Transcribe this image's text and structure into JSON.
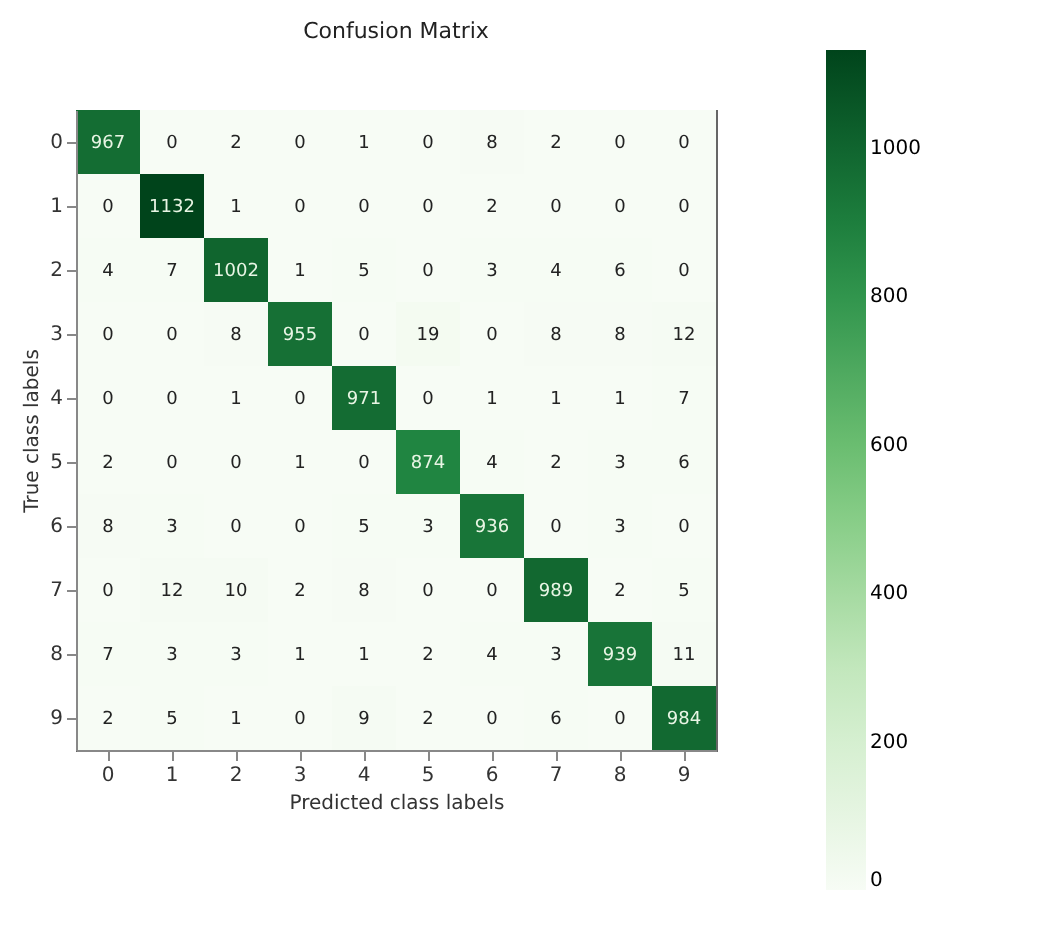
{
  "chart_data": {
    "type": "heatmap",
    "title": "Confusion Matrix",
    "xlabel": "Predicted class labels",
    "ylabel": "True class labels",
    "categories": [
      "0",
      "1",
      "2",
      "3",
      "4",
      "5",
      "6",
      "7",
      "8",
      "9"
    ],
    "y_categories": [
      "0",
      "1",
      "2",
      "3",
      "4",
      "5",
      "6",
      "7",
      "8",
      "9"
    ],
    "cells": [
      [
        967,
        0,
        2,
        0,
        1,
        0,
        8,
        2,
        0,
        0
      ],
      [
        0,
        1132,
        1,
        0,
        0,
        0,
        2,
        0,
        0,
        0
      ],
      [
        4,
        7,
        1002,
        1,
        5,
        0,
        3,
        4,
        6,
        0
      ],
      [
        0,
        0,
        8,
        955,
        0,
        19,
        0,
        8,
        8,
        12
      ],
      [
        0,
        0,
        1,
        0,
        971,
        0,
        1,
        1,
        1,
        7
      ],
      [
        2,
        0,
        0,
        1,
        0,
        874,
        4,
        2,
        3,
        6
      ],
      [
        8,
        3,
        0,
        0,
        5,
        3,
        936,
        0,
        3,
        0
      ],
      [
        0,
        12,
        10,
        2,
        8,
        0,
        0,
        989,
        2,
        5
      ],
      [
        7,
        3,
        3,
        1,
        1,
        2,
        4,
        3,
        939,
        11
      ],
      [
        2,
        5,
        1,
        0,
        9,
        2,
        0,
        6,
        0,
        984
      ]
    ],
    "clim": [
      0,
      1132
    ],
    "cticks": [
      0,
      200,
      400,
      600,
      800,
      1000
    ],
    "data_labels": true,
    "grid": false
  }
}
